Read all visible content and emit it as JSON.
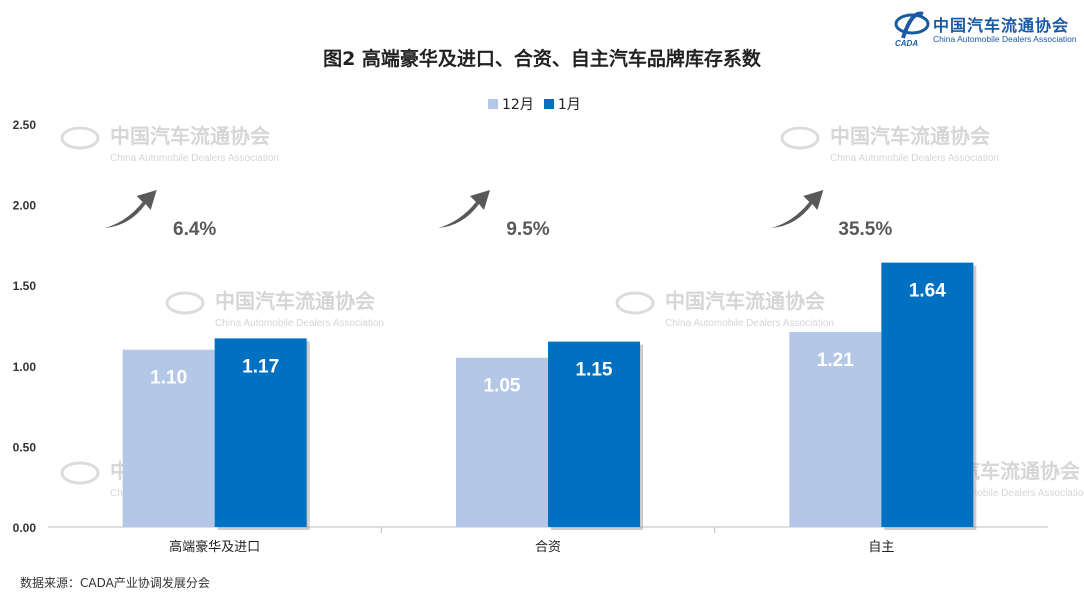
{
  "header": {
    "logo_cn": "中国汽车流通协会",
    "logo_en": "China Automobile Dealers Association",
    "logo_mark_text": "CADA"
  },
  "title": "图2  高端豪华及进口、合资、自主汽车品牌库存系数",
  "watermark": {
    "cn": "中国汽车流通协会",
    "en": "China Automobile Dealers Association"
  },
  "source": "数据来源：CADA产业协调发展分会",
  "colors": {
    "series_dec": "#b4c7e7",
    "series_jan": "#0070c0",
    "arrow": "#595959",
    "logo": "#1a5aa5"
  },
  "chart_data": {
    "type": "bar",
    "categories": [
      "高端豪华及进口",
      "合资",
      "自主"
    ],
    "series": [
      {
        "name": "12月",
        "values": [
          1.1,
          1.05,
          1.21
        ],
        "labels": [
          "1.10",
          "1.05",
          "1.21"
        ]
      },
      {
        "name": "1月",
        "values": [
          1.17,
          1.15,
          1.64
        ],
        "labels": [
          "1.17",
          "1.15",
          "1.64"
        ]
      }
    ],
    "yticks": [
      "0.00",
      "0.50",
      "1.00",
      "1.50",
      "2.00",
      "2.50"
    ],
    "ylim": [
      0,
      2.5
    ],
    "growth_labels": [
      "6.4%",
      "9.5%",
      "35.5%"
    ],
    "legend_position": "top-center",
    "grid": false
  }
}
